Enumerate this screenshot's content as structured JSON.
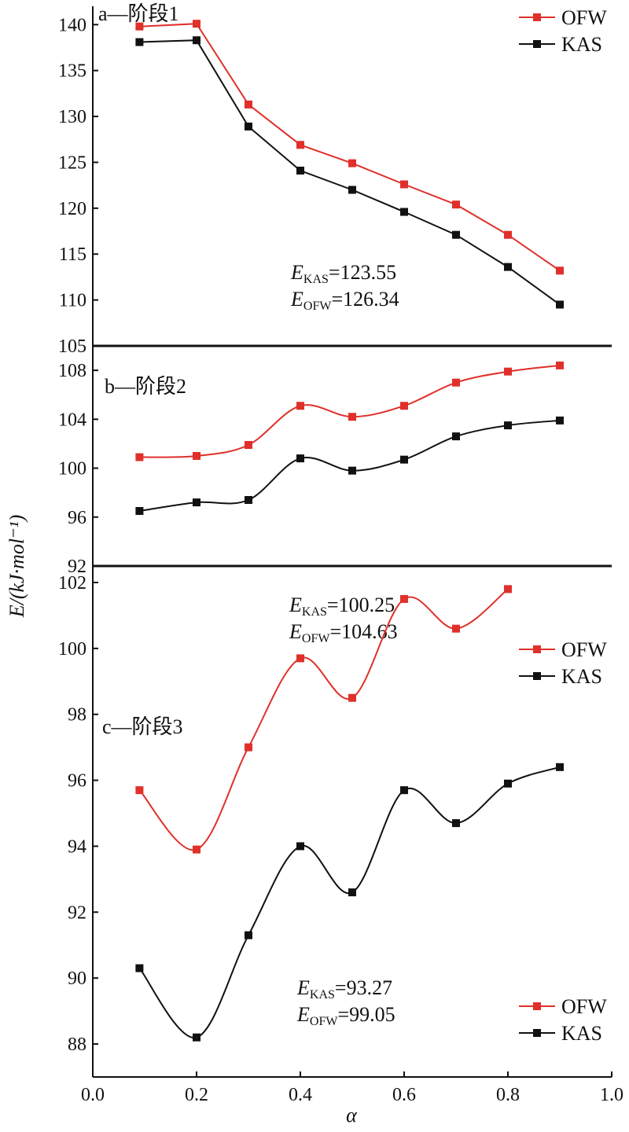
{
  "figure": {
    "ylabel": "E/(kJ·mol⁻¹)",
    "xlabel": "α",
    "x_ticks": [
      "0.0",
      "0.2",
      "0.4",
      "0.6",
      "0.8",
      "1.0"
    ],
    "colors": {
      "OFW": "#e0302a",
      "KAS": "#111111"
    }
  },
  "chart_data": [
    {
      "type": "line",
      "title": "a—阶段1",
      "xlim": [
        0.0,
        1.0
      ],
      "ylim": [
        105,
        142
      ],
      "y_ticks": [
        105,
        110,
        115,
        120,
        125,
        130,
        135,
        140
      ],
      "legend_position": "top-right",
      "x": [
        0.09,
        0.2,
        0.3,
        0.4,
        0.5,
        0.6,
        0.7,
        0.8,
        0.9
      ],
      "series": [
        {
          "name": "OFW",
          "values": [
            139.8,
            140.1,
            131.3,
            126.9,
            124.9,
            122.6,
            120.4,
            117.1,
            113.2
          ]
        },
        {
          "name": "KAS",
          "values": [
            138.1,
            138.3,
            128.9,
            124.1,
            122.0,
            119.6,
            117.1,
            113.6,
            109.5
          ]
        }
      ],
      "annotation": [
        {
          "main": "E",
          "sub": "KAS",
          "value": "=123.55"
        },
        {
          "main": "E",
          "sub": "OFW",
          "value": "=126.34"
        }
      ]
    },
    {
      "type": "line",
      "title": "b—阶段2",
      "xlim": [
        0.0,
        1.0
      ],
      "ylim": [
        92,
        110
      ],
      "y_ticks": [
        92,
        96,
        100,
        104,
        108
      ],
      "legend_position": "bottom-right",
      "x": [
        0.09,
        0.2,
        0.3,
        0.4,
        0.5,
        0.6,
        0.7,
        0.8,
        0.9
      ],
      "series": [
        {
          "name": "OFW",
          "values": [
            100.9,
            101.0,
            101.9,
            105.1,
            104.2,
            105.1,
            107.0,
            107.9,
            108.4
          ]
        },
        {
          "name": "KAS",
          "values": [
            96.5,
            97.2,
            97.4,
            100.8,
            99.8,
            100.7,
            102.6,
            103.5,
            103.9
          ]
        }
      ],
      "annotation": [
        {
          "main": "E",
          "sub": "KAS",
          "value": "=100.25"
        },
        {
          "main": "E",
          "sub": "OFW",
          "value": "=104.63"
        }
      ]
    },
    {
      "type": "line",
      "title": "c—阶段3",
      "xlim": [
        0.0,
        1.0
      ],
      "ylim": [
        87,
        102.5
      ],
      "y_ticks": [
        88,
        90,
        92,
        94,
        96,
        98,
        100,
        102
      ],
      "legend_position": "bottom-right",
      "series": [
        {
          "name": "OFW",
          "x": [
            0.09,
            0.2,
            0.3,
            0.4,
            0.5,
            0.6,
            0.7,
            0.8
          ],
          "values": [
            95.7,
            93.9,
            97.0,
            99.7,
            98.5,
            101.5,
            100.6,
            101.8
          ]
        },
        {
          "name": "KAS",
          "x": [
            0.09,
            0.2,
            0.3,
            0.4,
            0.5,
            0.6,
            0.7,
            0.8,
            0.9
          ],
          "values": [
            90.3,
            88.2,
            91.3,
            94.0,
            92.6,
            95.7,
            94.7,
            95.9,
            96.4
          ]
        }
      ],
      "annotation": [
        {
          "main": "E",
          "sub": "KAS",
          "value": "=93.27"
        },
        {
          "main": "E",
          "sub": "OFW",
          "value": "=99.05"
        }
      ]
    }
  ]
}
